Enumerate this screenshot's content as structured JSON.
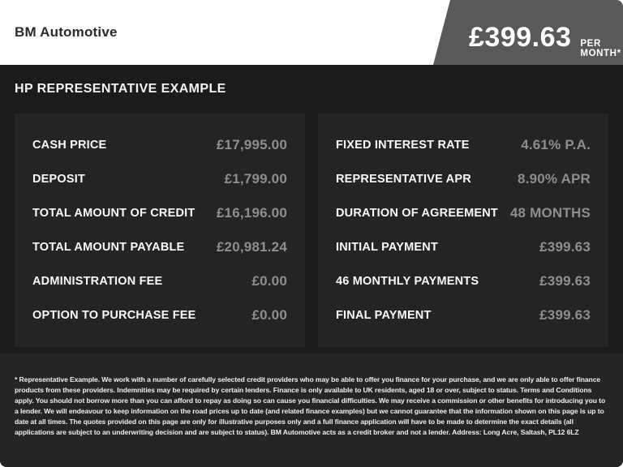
{
  "header": {
    "dealer_name": "BM Automotive",
    "price_badge": {
      "amount": "£399.63",
      "suffix": "PER MONTH*"
    }
  },
  "section_title": "HP REPRESENTATIVE EXAMPLE",
  "finance": {
    "left_rows": [
      {
        "label": "CASH PRICE",
        "value": "£17,995.00"
      },
      {
        "label": "DEPOSIT",
        "value": "£1,799.00"
      },
      {
        "label": "TOTAL AMOUNT OF CREDIT",
        "value": "£16,196.00"
      },
      {
        "label": "TOTAL AMOUNT PAYABLE",
        "value": "£20,981.24"
      },
      {
        "label": "ADMINISTRATION FEE",
        "value": "£0.00"
      },
      {
        "label": "OPTION TO PURCHASE FEE",
        "value": "£0.00"
      }
    ],
    "right_rows": [
      {
        "label": "FIXED INTEREST RATE",
        "value": "4.61% P.A."
      },
      {
        "label": "REPRESENTATIVE APR",
        "value": "8.90% APR"
      },
      {
        "label": "DURATION OF AGREEMENT",
        "value": "48 MONTHS"
      },
      {
        "label": "INITIAL PAYMENT",
        "value": "£399.63"
      },
      {
        "label": "46 MONTHLY PAYMENTS",
        "value": "£399.63"
      },
      {
        "label": "FINAL PAYMENT",
        "value": "£399.63"
      }
    ]
  },
  "disclaimer": "* Representative Example. We work with a number of carefully selected credit providers who may be able to offer you finance for your purchase, and we are only able to offer finance products from these providers. Indemnities may be required by certain lenders. Finance is only available to UK residents, aged 18 or over, subject to status. Terms and Conditions apply. You should not borrow more than you can afford to repay as doing so can cause you financial difficulties. We may receive a commission or other benefits for introducing you to a lender. We will endeavour to keep information on the road prices up to date (and related finance examples) but we cannot guarantee that the information shown on this page is up to date at all times. The quotes provided on this page are only for illustrative purposes only and a full finance application will have to be made to determine the exact details (all applications are subject to an underwriting decision and are subject to status). BM Automotive acts as a credit broker and not a lender. Address: Long Acre, Saltash, PL12 6LZ",
  "colors": {
    "badge_gray": "#59595b",
    "dark_background": "#1b1b1b",
    "panel_background": "#242424",
    "footer_background": "#252525",
    "label_text": "#fafafa",
    "value_text": "#8e8e8e"
  }
}
